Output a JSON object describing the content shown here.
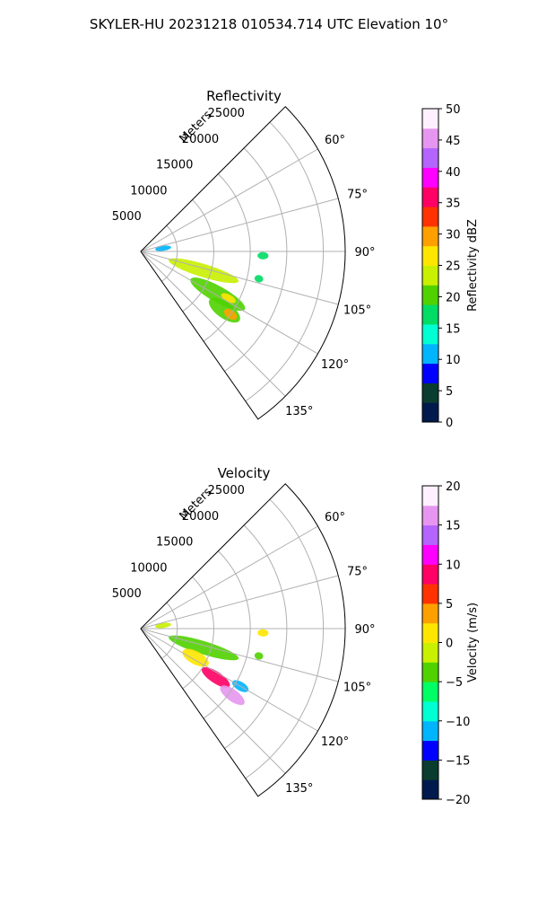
{
  "suptitle": "SKYLER-HU  20231218  010534.714 UTC Elevation 10°",
  "range_axis_label": "Meters",
  "chart_data": [
    {
      "type": "polar-sector",
      "title": "Reflectivity",
      "azimuth_range_deg": [
        45,
        145
      ],
      "range_max_m": 28000,
      "range_ticks_m": [
        5000,
        10000,
        15000,
        20000,
        25000
      ],
      "range_tick_labels": [
        "5000",
        "10000",
        "15000",
        "20000",
        "25000"
      ],
      "azimuth_ticks_deg": [
        60,
        75,
        90,
        105,
        120,
        135
      ],
      "azimuth_tick_labels": [
        "60°",
        "75°",
        "90°",
        "105°",
        "120°",
        "135°"
      ],
      "grid": true,
      "colorbar": {
        "label": "Reflectivity dBZ",
        "min": 0,
        "max": 50,
        "ticks": [
          0,
          5,
          10,
          15,
          20,
          25,
          30,
          35,
          40,
          45,
          50
        ],
        "tick_labels": [
          "0",
          "5",
          "10",
          "15",
          "20",
          "25",
          "30",
          "35",
          "40",
          "45",
          "50"
        ],
        "stops": [
          "#001a4d",
          "#0a3d2f",
          "#0000ff",
          "#00b4ff",
          "#00ffd2",
          "#00dc64",
          "#50d200",
          "#c8f000",
          "#ffe600",
          "#ffa000",
          "#ff3200",
          "#ff0064",
          "#ff00ff",
          "#b464ff",
          "#e696f0",
          "#fff0ff"
        ]
      },
      "echo_regions": [
        {
          "az_deg": 107,
          "r_km": 4.0,
          "len_km": 10.0,
          "wid_km": 1.8,
          "dbz": 22
        },
        {
          "az_deg": 119,
          "r_km": 7.8,
          "len_km": 8.5,
          "wid_km": 2.2,
          "dbz": 20
        },
        {
          "az_deg": 125,
          "r_km": 11.5,
          "len_km": 5.0,
          "wid_km": 2.2,
          "dbz": 20
        },
        {
          "az_deg": 118,
          "r_km": 12.5,
          "len_km": 2.2,
          "wid_km": 1.0,
          "dbz": 26
        },
        {
          "az_deg": 125,
          "r_km": 14.0,
          "len_km": 2.0,
          "wid_km": 1.2,
          "dbz": 30
        },
        {
          "az_deg": 92,
          "r_km": 16.0,
          "len_km": 1.5,
          "wid_km": 1.0,
          "dbz": 18
        },
        {
          "az_deg": 103,
          "r_km": 16.0,
          "len_km": 1.2,
          "wid_km": 1.0,
          "dbz": 18
        },
        {
          "az_deg": 82,
          "r_km": 2.0,
          "len_km": 2.2,
          "wid_km": 0.7,
          "dbz": 12
        }
      ]
    },
    {
      "type": "polar-sector",
      "title": "Velocity",
      "azimuth_range_deg": [
        45,
        145
      ],
      "range_max_m": 28000,
      "range_ticks_m": [
        5000,
        10000,
        15000,
        20000,
        25000
      ],
      "range_tick_labels": [
        "5000",
        "10000",
        "15000",
        "20000",
        "25000"
      ],
      "azimuth_ticks_deg": [
        60,
        75,
        90,
        105,
        120,
        135
      ],
      "azimuth_tick_labels": [
        "60°",
        "75°",
        "90°",
        "105°",
        "120°",
        "135°"
      ],
      "grid": true,
      "colorbar": {
        "label": "Velocity (m/s)",
        "min": -20,
        "max": 20,
        "ticks": [
          -20,
          -15,
          -10,
          -5,
          0,
          5,
          10,
          15,
          20
        ],
        "tick_labels": [
          "−20",
          "−15",
          "−10",
          "−5",
          "0",
          "5",
          "10",
          "15",
          "20"
        ],
        "stops": [
          "#001a4d",
          "#0a3d2f",
          "#0000ff",
          "#00b4ff",
          "#00ffd2",
          "#00ff64",
          "#50d200",
          "#c8f000",
          "#ffe600",
          "#ffa000",
          "#ff3200",
          "#ff0064",
          "#ff00ff",
          "#b464ff",
          "#e696f0",
          "#fff0ff"
        ]
      },
      "echo_regions": [
        {
          "az_deg": 107,
          "r_km": 4.0,
          "len_km": 10.0,
          "wid_km": 1.8,
          "vel": -3
        },
        {
          "az_deg": 118,
          "r_km": 6.5,
          "len_km": 4.0,
          "wid_km": 1.8,
          "vel": 1
        },
        {
          "az_deg": 123,
          "r_km": 10.0,
          "len_km": 4.5,
          "wid_km": 1.6,
          "vel": 9
        },
        {
          "az_deg": 126,
          "r_km": 13.5,
          "len_km": 4.0,
          "wid_km": 1.6,
          "vel": 15
        },
        {
          "az_deg": 120,
          "r_km": 14.5,
          "len_km": 2.5,
          "wid_km": 1.2,
          "vel": -12
        },
        {
          "az_deg": 92,
          "r_km": 16.0,
          "len_km": 1.5,
          "wid_km": 1.0,
          "vel": 2
        },
        {
          "az_deg": 103,
          "r_km": 16.0,
          "len_km": 1.2,
          "wid_km": 1.0,
          "vel": -5
        },
        {
          "az_deg": 82,
          "r_km": 2.0,
          "len_km": 2.2,
          "wid_km": 0.7,
          "vel": -2
        }
      ]
    }
  ]
}
